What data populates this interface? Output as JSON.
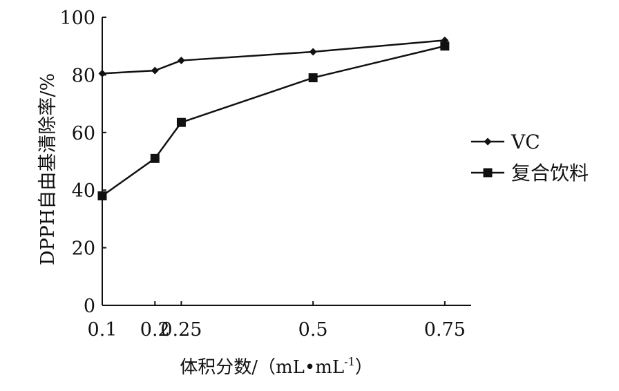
{
  "chart_data": {
    "type": "line",
    "title": "",
    "xlabel": "体积分数/（mL•mL",
    "xlabel_sup": "-1",
    "xlabel_close": "）",
    "ylabel": "DPPH自由基清除率/%",
    "x": [
      0.1,
      0.2,
      0.25,
      0.5,
      0.75
    ],
    "x_tick_labels": [
      "0.1",
      "0.2",
      "0.25",
      "0.5",
      "0.75"
    ],
    "y_ticks": [
      0,
      20,
      40,
      60,
      80,
      100
    ],
    "ylim": [
      0,
      100
    ],
    "xlim": [
      0.1,
      0.8
    ],
    "grid": false,
    "legend_position": "right",
    "series": [
      {
        "name": "VC",
        "marker": "diamond",
        "values": [
          80.5,
          81.5,
          85,
          88,
          92
        ]
      },
      {
        "name": "复合饮料",
        "marker": "square",
        "values": [
          38,
          51,
          63.5,
          79,
          90
        ]
      }
    ]
  }
}
